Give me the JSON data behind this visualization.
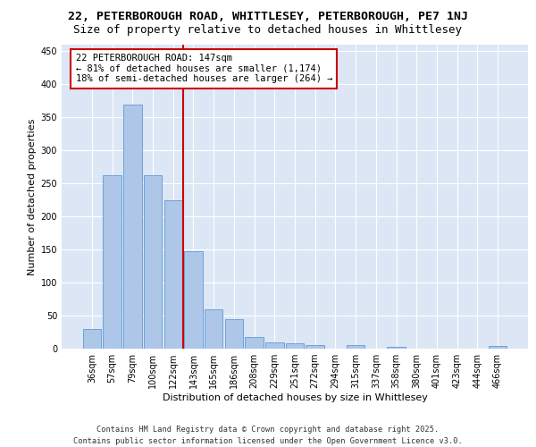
{
  "title_line1": "22, PETERBOROUGH ROAD, WHITTLESEY, PETERBOROUGH, PE7 1NJ",
  "title_line2": "Size of property relative to detached houses in Whittlesey",
  "xlabel": "Distribution of detached houses by size in Whittlesey",
  "ylabel": "Number of detached properties",
  "categories": [
    "36sqm",
    "57sqm",
    "79sqm",
    "100sqm",
    "122sqm",
    "143sqm",
    "165sqm",
    "186sqm",
    "208sqm",
    "229sqm",
    "251sqm",
    "272sqm",
    "294sqm",
    "315sqm",
    "337sqm",
    "358sqm",
    "380sqm",
    "401sqm",
    "423sqm",
    "444sqm",
    "466sqm"
  ],
  "values": [
    30,
    263,
    370,
    262,
    225,
    147,
    60,
    45,
    18,
    10,
    8,
    6,
    0,
    5,
    0,
    3,
    0,
    0,
    0,
    0,
    4
  ],
  "bar_color": "#aec6e8",
  "bar_edge_color": "#5b9bd5",
  "vline_index": 5,
  "vline_color": "#cc0000",
  "annotation_text": "22 PETERBOROUGH ROAD: 147sqm\n← 81% of detached houses are smaller (1,174)\n18% of semi-detached houses are larger (264) →",
  "annotation_box_color": "#cc0000",
  "ylim": [
    0,
    460
  ],
  "yticks": [
    0,
    50,
    100,
    150,
    200,
    250,
    300,
    350,
    400,
    450
  ],
  "background_color": "#dce6f5",
  "footer_text": "Contains HM Land Registry data © Crown copyright and database right 2025.\nContains public sector information licensed under the Open Government Licence v3.0.",
  "title_fontsize": 9.5,
  "subtitle_fontsize": 9,
  "axis_label_fontsize": 8,
  "tick_fontsize": 7,
  "annotation_fontsize": 7.5,
  "footer_fontsize": 6.2
}
